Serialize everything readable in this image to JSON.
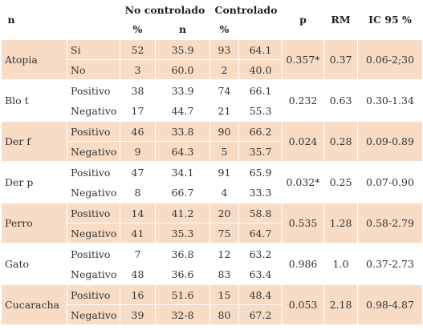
{
  "headers": {
    "variable": "n",
    "group1": "No controlado",
    "group2": "Controlado",
    "p": "p",
    "rm": "RM",
    "ic": "IC 95 %",
    "sub": [
      "%",
      "n",
      "%"
    ]
  },
  "rows": [
    {
      "variable": "Atopia",
      "shaded": true,
      "p": "0.357*",
      "rm": "0.37",
      "ic": "0.06-2;30",
      "cats": [
        {
          "label": "Si",
          "nc_n": "52",
          "nc_pct": "35.9",
          "c_n": "93",
          "c_pct": "64.1"
        },
        {
          "label": "No",
          "nc_n": "3",
          "nc_pct": "60.0",
          "c_n": "2",
          "c_pct": "40.0"
        }
      ]
    },
    {
      "variable": "Blo t",
      "shaded": false,
      "p": "0.232",
      "rm": "0.63",
      "ic": "0.30-1.34",
      "cats": [
        {
          "label": "Positivo",
          "nc_n": "38",
          "nc_pct": "33.9",
          "c_n": "74",
          "c_pct": "66.1"
        },
        {
          "label": "Negativo",
          "nc_n": "17",
          "nc_pct": "44.7",
          "c_n": "21",
          "c_pct": "55.3"
        }
      ]
    },
    {
      "variable": "Der f",
      "shaded": true,
      "p": "0.024",
      "rm": "0.28",
      "ic": "0.09-0.89",
      "cats": [
        {
          "label": "Positivo",
          "nc_n": "46",
          "nc_pct": "33.8",
          "c_n": "90",
          "c_pct": "66.2"
        },
        {
          "label": "Negativo",
          "nc_n": "9",
          "nc_pct": "64.3",
          "c_n": "5",
          "c_pct": "35.7"
        }
      ]
    },
    {
      "variable": "Der p",
      "shaded": false,
      "p": "0.032*",
      "rm": "0.25",
      "ic": "0.07-0.90",
      "cats": [
        {
          "label": "Positivo",
          "nc_n": "47",
          "nc_pct": "34.1",
          "c_n": "91",
          "c_pct": "65.9"
        },
        {
          "label": "Negativo",
          "nc_n": "8",
          "nc_pct": "66.7",
          "c_n": "4",
          "c_pct": "33.3"
        }
      ]
    },
    {
      "variable": "Perro",
      "shaded": true,
      "p": "0.535",
      "rm": "1.28",
      "ic": "0.58-2.79",
      "cats": [
        {
          "label": "Positivo",
          "nc_n": "14",
          "nc_pct": "41.2",
          "c_n": "20",
          "c_pct": "58.8"
        },
        {
          "label": "Negativo",
          "nc_n": "41",
          "nc_pct": "35.3",
          "c_n": "75",
          "c_pct": "64.7"
        }
      ]
    },
    {
      "variable": "Gato",
      "shaded": false,
      "p": "0.986",
      "rm": "1.0",
      "ic": "0.37-2.73",
      "cats": [
        {
          "label": "Positivo",
          "nc_n": "7",
          "nc_pct": "36.8",
          "c_n": "12",
          "c_pct": "63.2"
        },
        {
          "label": "Negativo",
          "nc_n": "48",
          "nc_pct": "36.6",
          "c_n": "83",
          "c_pct": "63.4"
        }
      ]
    },
    {
      "variable": "Cucaracha",
      "shaded": true,
      "p": "0.053",
      "rm": "2.18",
      "ic": "0.98-4.87",
      "cats": [
        {
          "label": "Positivo",
          "nc_n": "16",
          "nc_pct": "51.6",
          "c_n": "15",
          "c_pct": "48.4"
        },
        {
          "label": "Negativo",
          "nc_n": "39",
          "nc_pct": "32-8",
          "c_n": "80",
          "c_pct": "67.2"
        }
      ]
    }
  ]
}
